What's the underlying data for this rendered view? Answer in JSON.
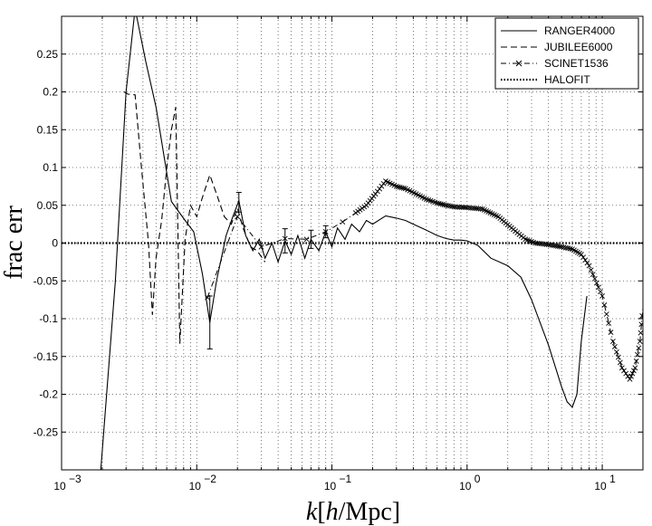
{
  "chart_data": {
    "type": "line",
    "xscale": "log",
    "xlim": [
      0.001,
      20
    ],
    "ylim": [
      -0.3,
      0.3
    ],
    "xlabel": "k[h/Mpc]",
    "ylabel": "frac err",
    "grid": "dotted",
    "legend_position": "top-right",
    "x_ticks": [
      {
        "value": 0.001,
        "base": "10",
        "exp": "−3"
      },
      {
        "value": 0.01,
        "base": "10",
        "exp": "−2"
      },
      {
        "value": 0.1,
        "base": "10",
        "exp": "−1"
      },
      {
        "value": 1,
        "base": "10",
        "exp": "0"
      },
      {
        "value": 10,
        "base": "10",
        "exp": "1"
      }
    ],
    "y_ticks": [
      {
        "value": 0.25,
        "label": "0.25"
      },
      {
        "value": 0.2,
        "label": "0.2"
      },
      {
        "value": 0.15,
        "label": "0.15"
      },
      {
        "value": 0.1,
        "label": "0.1"
      },
      {
        "value": 0.05,
        "label": "0.05"
      },
      {
        "value": 0,
        "label": "0"
      },
      {
        "value": -0.05,
        "label": "-0.05"
      },
      {
        "value": -0.1,
        "label": "-0.1"
      },
      {
        "value": -0.15,
        "label": "-0.15"
      },
      {
        "value": -0.2,
        "label": "-0.2"
      },
      {
        "value": -0.25,
        "label": "-0.25"
      }
    ],
    "series": [
      {
        "name": "RANGER4000",
        "style": "solid",
        "points": [
          [
            0.00195,
            -0.3
          ],
          [
            0.0025,
            -0.05
          ],
          [
            0.003,
            0.2
          ],
          [
            0.0035,
            0.31
          ],
          [
            0.0042,
            0.24
          ],
          [
            0.005,
            0.18
          ],
          [
            0.0065,
            0.055
          ],
          [
            0.0082,
            0.03
          ],
          [
            0.0095,
            0.015
          ],
          [
            0.011,
            -0.04
          ],
          [
            0.0125,
            -0.105
          ],
          [
            0.014,
            -0.05
          ],
          [
            0.0165,
            0.01
          ],
          [
            0.0185,
            0.035
          ],
          [
            0.0205,
            0.056
          ],
          [
            0.023,
            0.01
          ],
          [
            0.026,
            -0.01
          ],
          [
            0.029,
            0.005
          ],
          [
            0.032,
            -0.02
          ],
          [
            0.036,
            0.0
          ],
          [
            0.04,
            -0.025
          ],
          [
            0.045,
            0.003
          ],
          [
            0.05,
            -0.015
          ],
          [
            0.056,
            0.01
          ],
          [
            0.063,
            -0.02
          ],
          [
            0.07,
            0.005
          ],
          [
            0.08,
            -0.01
          ],
          [
            0.09,
            0.015
          ],
          [
            0.1,
            -0.005
          ],
          [
            0.11,
            0.02
          ],
          [
            0.125,
            0.005
          ],
          [
            0.14,
            0.025
          ],
          [
            0.16,
            0.015
          ],
          [
            0.18,
            0.03
          ],
          [
            0.2,
            0.025
          ],
          [
            0.25,
            0.036
          ],
          [
            0.3,
            0.033
          ],
          [
            0.35,
            0.03
          ],
          [
            0.4,
            0.025
          ],
          [
            0.5,
            0.017
          ],
          [
            0.6,
            0.01
          ],
          [
            0.7,
            0.006
          ],
          [
            0.8,
            0.004
          ],
          [
            0.9,
            0.004
          ],
          [
            1.0,
            0.003
          ],
          [
            1.2,
            -0.003
          ],
          [
            1.5,
            -0.02
          ],
          [
            2.0,
            -0.03
          ],
          [
            2.5,
            -0.045
          ],
          [
            3.0,
            -0.075
          ],
          [
            4.0,
            -0.135
          ],
          [
            5.0,
            -0.19
          ],
          [
            5.5,
            -0.21
          ],
          [
            6.0,
            -0.217
          ],
          [
            6.5,
            -0.2
          ],
          [
            7.0,
            -0.13
          ],
          [
            7.7,
            -0.07
          ]
        ]
      },
      {
        "name": "JUBILEE6000",
        "style": "dashed",
        "points": [
          [
            0.0029,
            0.2
          ],
          [
            0.0031,
            0.197
          ],
          [
            0.0035,
            0.196
          ],
          [
            0.0039,
            0.1
          ],
          [
            0.0044,
            0.0
          ],
          [
            0.0047,
            -0.095
          ],
          [
            0.005,
            -0.02
          ],
          [
            0.0055,
            0.03
          ],
          [
            0.006,
            0.1
          ],
          [
            0.0065,
            0.15
          ],
          [
            0.007,
            0.18
          ],
          [
            0.0075,
            -0.133
          ],
          [
            0.0082,
            0.005
          ],
          [
            0.009,
            0.05
          ],
          [
            0.01,
            0.035
          ],
          [
            0.011,
            0.06
          ],
          [
            0.0125,
            0.09
          ],
          [
            0.014,
            0.065
          ],
          [
            0.016,
            0.035
          ],
          [
            0.018,
            0.025
          ],
          [
            0.02,
            0.046
          ],
          [
            0.022,
            0.02
          ],
          [
            0.025,
            -0.005
          ],
          [
            0.028,
            -0.01
          ],
          [
            0.032,
            -0.025
          ]
        ]
      },
      {
        "name": "SCINET1536",
        "style": "dashdot-x",
        "points": [
          [
            0.012,
            -0.072
          ],
          [
            0.02,
            0.035
          ],
          [
            0.03,
            -0.005
          ],
          [
            0.045,
            0.006
          ],
          [
            0.065,
            0.005
          ],
          [
            0.09,
            0.015
          ],
          [
            0.12,
            0.028
          ],
          [
            0.15,
            0.04
          ],
          [
            0.18,
            0.05
          ],
          [
            0.21,
            0.065
          ],
          [
            0.25,
            0.082
          ],
          [
            0.3,
            0.075
          ],
          [
            0.35,
            0.072
          ],
          [
            0.42,
            0.065
          ],
          [
            0.5,
            0.058
          ],
          [
            0.6,
            0.053
          ],
          [
            0.7,
            0.05
          ],
          [
            0.8,
            0.048
          ],
          [
            1.0,
            0.047
          ],
          [
            1.3,
            0.045
          ],
          [
            1.7,
            0.035
          ],
          [
            2.2,
            0.018
          ],
          [
            2.7,
            0.005
          ],
          [
            3.2,
            0.0
          ],
          [
            4.0,
            -0.002
          ],
          [
            5.0,
            -0.005
          ],
          [
            6.0,
            -0.008
          ],
          [
            7.0,
            -0.015
          ],
          [
            8.0,
            -0.03
          ],
          [
            10.0,
            -0.07
          ],
          [
            12.0,
            -0.13
          ],
          [
            14.0,
            -0.165
          ],
          [
            16.0,
            -0.18
          ],
          [
            17.5,
            -0.165
          ],
          [
            19.0,
            -0.13
          ],
          [
            20.0,
            -0.085
          ]
        ]
      },
      {
        "name": "HALOFIT",
        "style": "dotted",
        "points": [
          [
            0.001,
            0.0
          ],
          [
            20.0,
            0.0
          ]
        ]
      }
    ],
    "error_bars": [
      {
        "x": 0.0125,
        "y": -0.105,
        "err": 0.035
      },
      {
        "x": 0.0205,
        "y": 0.054,
        "err": 0.013
      },
      {
        "x": 0.045,
        "y": 0.003,
        "err": 0.016
      },
      {
        "x": 0.07,
        "y": 0.005,
        "err": 0.012
      },
      {
        "x": 0.09,
        "y": 0.015,
        "err": 0.008
      }
    ]
  }
}
